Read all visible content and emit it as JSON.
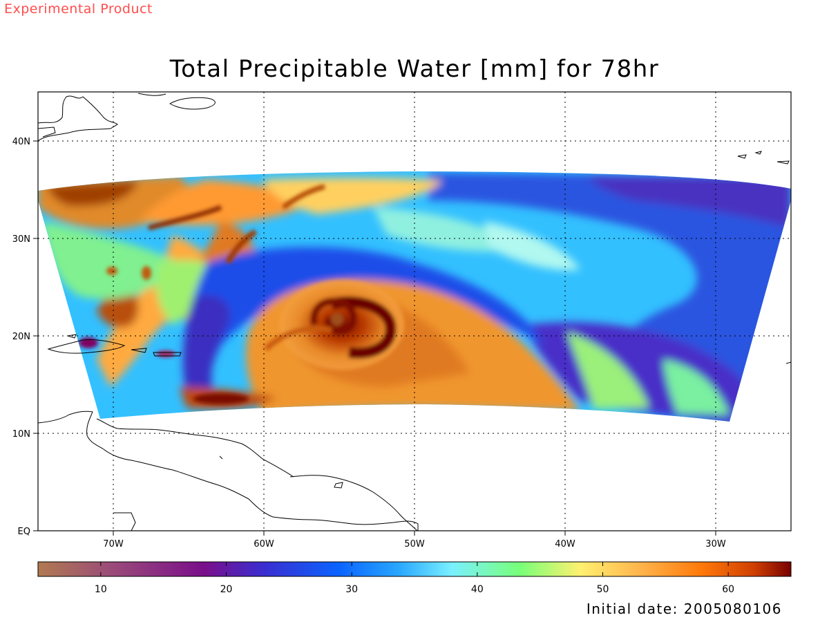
{
  "header": {
    "product_tag": "Experimental Product",
    "title": "Total Precipitable Water [mm] for 78hr"
  },
  "footer": {
    "initial_date": "Initial date: 2005080106"
  },
  "map": {
    "lon_range": [
      -75,
      -25
    ],
    "lat_range": [
      0,
      45
    ],
    "lat_labels": [
      "EQ",
      "10N",
      "20N",
      "30N",
      "40N"
    ],
    "lon_labels": [
      "70W",
      "60W",
      "50W",
      "40W",
      "30W"
    ],
    "grid": "dotted",
    "storm_center": {
      "lon": -55,
      "lat": 21.5
    }
  },
  "colorbar": {
    "min": 5,
    "max": 65,
    "tick_labels": [
      "10",
      "20",
      "30",
      "40",
      "50",
      "60"
    ],
    "ticks": [
      10,
      20,
      30,
      40,
      50,
      60
    ],
    "colors": [
      "#b07a50",
      "#9a4a7a",
      "#7a0f8a",
      "#3a2ed0",
      "#0a64ff",
      "#2aa8ff",
      "#7af0ff",
      "#78ff78",
      "#fff070",
      "#ffb44c",
      "#ff7a0a",
      "#d04000",
      "#780000"
    ]
  }
}
